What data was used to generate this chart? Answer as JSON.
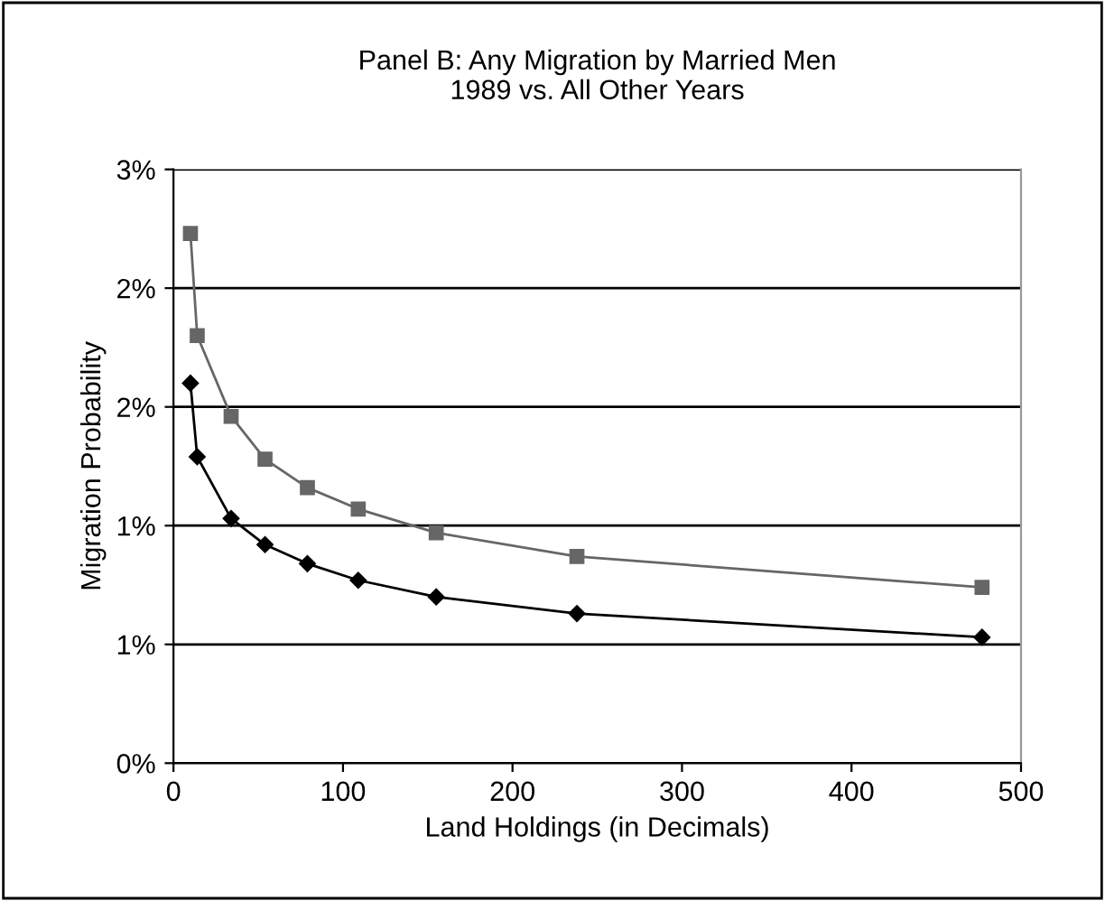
{
  "chart_data": {
    "type": "line",
    "title": "Panel B: Any Migration by Married Men\n1989 vs. All Other Years",
    "xlabel": "Land Holdings (in Decimals)",
    "ylabel": "Migration Probability",
    "xlim": [
      0,
      500
    ],
    "xticks": [
      0,
      100,
      200,
      300,
      400,
      500
    ],
    "ylim": [
      0,
      2.5
    ],
    "yticks": [
      {
        "value": 0,
        "label": "0%"
      },
      {
        "value": 0.5,
        "label": "1%"
      },
      {
        "value": 1.0,
        "label": "1%"
      },
      {
        "value": 1.5,
        "label": "2%"
      },
      {
        "value": 2.0,
        "label": "2%"
      },
      {
        "value": 2.5,
        "label": "3%"
      }
    ],
    "grid": "y",
    "legend": false,
    "series": [
      {
        "color": "#666666",
        "marker": "square",
        "x": [
          10,
          14,
          34,
          54,
          79,
          109,
          155,
          238,
          477
        ],
        "values": [
          2.23,
          1.8,
          1.46,
          1.28,
          1.16,
          1.07,
          0.97,
          0.87,
          0.74
        ]
      },
      {
        "color": "#000000",
        "marker": "diamond",
        "x": [
          10,
          14,
          34,
          54,
          79,
          109,
          155,
          238,
          477
        ],
        "values": [
          1.6,
          1.29,
          1.03,
          0.92,
          0.84,
          0.77,
          0.7,
          0.63,
          0.53
        ]
      }
    ]
  }
}
